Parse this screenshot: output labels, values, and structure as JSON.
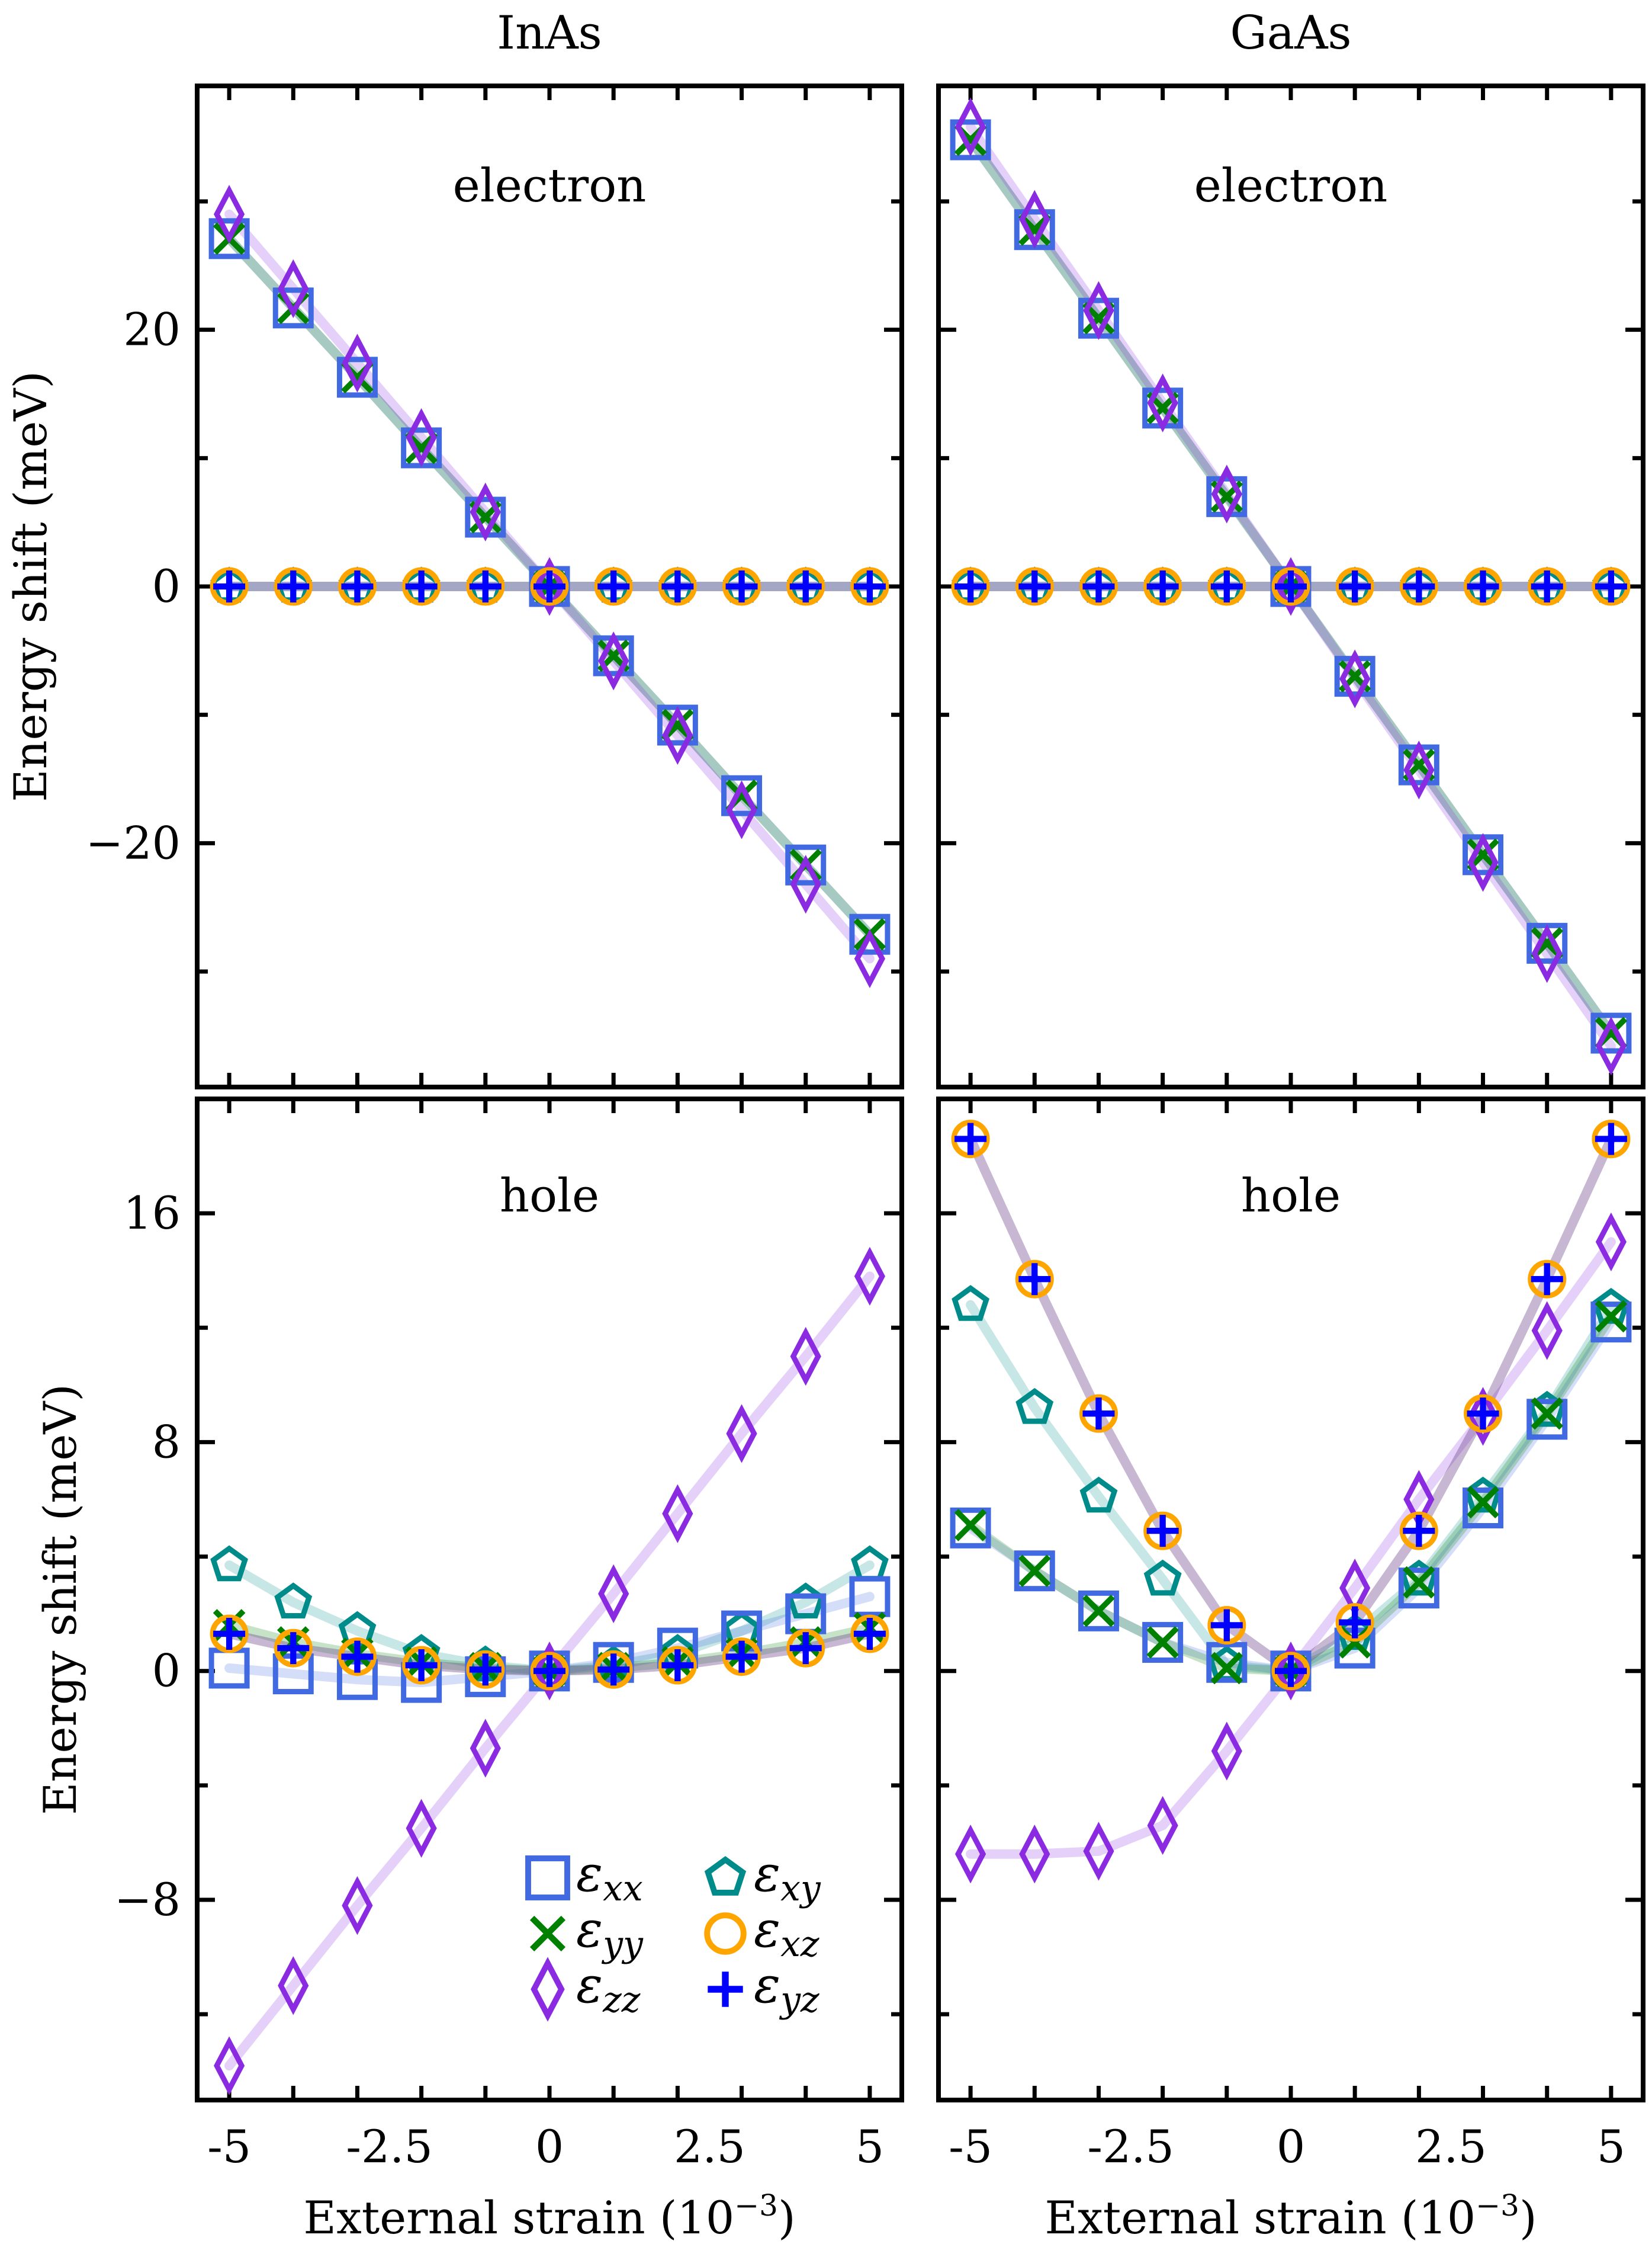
{
  "figure": {
    "columns": [
      "InAs",
      "GaAs"
    ],
    "xlabel": "External strain (10",
    "xlabel_exponent": "−3",
    "xlabel_close": ")",
    "ylabel": "Energy shift (meV)"
  },
  "legend": [
    {
      "key": "exx",
      "base": "ε",
      "sub": "xx",
      "marker": "square",
      "color": "#4169E1"
    },
    {
      "key": "exy",
      "base": "ε",
      "sub": "xy",
      "marker": "pentagon",
      "color": "#008B8B"
    },
    {
      "key": "eyy",
      "base": "ε",
      "sub": "yy",
      "marker": "x",
      "color": "#008000"
    },
    {
      "key": "exz",
      "base": "ε",
      "sub": "xz",
      "marker": "circle",
      "color": "#FFA500"
    },
    {
      "key": "ezz",
      "base": "ε",
      "sub": "zz",
      "marker": "diamond",
      "color": "#8A2BE2"
    },
    {
      "key": "eyz",
      "base": "ε",
      "sub": "yz",
      "marker": "plus",
      "color": "#0000FF"
    }
  ],
  "chart_data": [
    {
      "id": "inas-electron",
      "type": "line",
      "material": "InAs",
      "panel_label": "electron",
      "x": [
        -5,
        -4,
        -3,
        -2,
        -1,
        0,
        1,
        2,
        3,
        4,
        5
      ],
      "xticks": [
        -5,
        -2.5,
        0,
        2.5,
        5
      ],
      "xtick_labels": [
        "-5",
        "-2.5",
        "0",
        "2.5",
        "5"
      ],
      "xlim": [
        -5.5,
        5.5
      ],
      "ylim": [
        -39,
        39
      ],
      "yticks": [
        -20,
        0,
        20
      ],
      "ytick_labels": [
        "−20",
        "0",
        "20"
      ],
      "yminor": [
        -30,
        -10,
        10,
        30
      ],
      "series": [
        {
          "name": "exx",
          "values": [
            27.1,
            21.7,
            16.3,
            10.8,
            5.4,
            0,
            -5.4,
            -10.8,
            -16.3,
            -21.7,
            -27.1
          ]
        },
        {
          "name": "eyy",
          "values": [
            27.1,
            21.7,
            16.3,
            10.8,
            5.4,
            0,
            -5.4,
            -10.8,
            -16.3,
            -21.7,
            -27.1
          ]
        },
        {
          "name": "ezz",
          "values": [
            29.0,
            23.2,
            17.4,
            11.6,
            5.8,
            0,
            -5.8,
            -11.6,
            -17.4,
            -23.2,
            -29.0
          ]
        },
        {
          "name": "exy",
          "values": [
            0,
            0,
            0,
            0,
            0,
            0,
            0,
            0,
            0,
            0,
            0
          ]
        },
        {
          "name": "exz",
          "values": [
            0,
            0,
            0,
            0,
            0,
            0,
            0,
            0,
            0,
            0,
            0
          ]
        },
        {
          "name": "eyz",
          "values": [
            0,
            0,
            0,
            0,
            0,
            0,
            0,
            0,
            0,
            0,
            0
          ]
        }
      ]
    },
    {
      "id": "gaas-electron",
      "type": "line",
      "material": "GaAs",
      "panel_label": "electron",
      "x": [
        -5,
        -4,
        -3,
        -2,
        -1,
        0,
        1,
        2,
        3,
        4,
        5
      ],
      "xticks": [
        -5,
        -2.5,
        0,
        2.5,
        5
      ],
      "xtick_labels": [
        "-5",
        "-2.5",
        "0",
        "2.5",
        "5"
      ],
      "xlim": [
        -5.5,
        5.5
      ],
      "ylim": [
        -39,
        39
      ],
      "yticks": [
        -20,
        0,
        20
      ],
      "ytick_labels": [
        "",
        "",
        ""
      ],
      "yminor": [
        -30,
        -10,
        10,
        30
      ],
      "series": [
        {
          "name": "exx",
          "values": [
            34.8,
            27.8,
            20.9,
            13.9,
            7.0,
            0,
            -7.0,
            -13.9,
            -20.9,
            -27.8,
            -34.8
          ]
        },
        {
          "name": "eyy",
          "values": [
            34.8,
            27.8,
            20.9,
            13.9,
            7.0,
            0,
            -7.0,
            -13.9,
            -20.9,
            -27.8,
            -34.8
          ]
        },
        {
          "name": "ezz",
          "values": [
            35.8,
            28.6,
            21.5,
            14.3,
            7.2,
            0,
            -7.2,
            -14.3,
            -21.5,
            -28.6,
            -35.8
          ]
        },
        {
          "name": "exy",
          "values": [
            0,
            0,
            0,
            0,
            0,
            0,
            0,
            0,
            0,
            0,
            0
          ]
        },
        {
          "name": "exz",
          "values": [
            0,
            0,
            0,
            0,
            0,
            0,
            0,
            0,
            0,
            0,
            0
          ]
        },
        {
          "name": "eyz",
          "values": [
            0,
            0,
            0,
            0,
            0,
            0,
            0,
            0,
            0,
            0,
            0
          ]
        }
      ]
    },
    {
      "id": "inas-hole",
      "type": "line",
      "material": "InAs",
      "panel_label": "hole",
      "x": [
        -5,
        -4,
        -3,
        -2,
        -1,
        0,
        1,
        2,
        3,
        4,
        5
      ],
      "xticks": [
        -5,
        -2.5,
        0,
        2.5,
        5
      ],
      "xtick_labels": [
        "-5",
        "-2.5",
        "0",
        "2.5",
        "5"
      ],
      "xlim": [
        -5.5,
        5.5
      ],
      "ylim": [
        -15,
        20
      ],
      "yticks": [
        -8,
        0,
        8,
        16
      ],
      "ytick_labels": [
        "−8",
        "0",
        "8",
        "16"
      ],
      "yminor": [
        -12,
        -4,
        4,
        12
      ],
      "series": [
        {
          "name": "exx",
          "values": [
            0.1,
            -0.1,
            -0.3,
            -0.4,
            -0.2,
            0,
            0.3,
            0.8,
            1.4,
            2.0,
            2.6
          ]
        },
        {
          "name": "eyy",
          "values": [
            1.6,
            1.0,
            0.6,
            0.3,
            0.1,
            0,
            0.1,
            0.3,
            0.6,
            1.0,
            1.5
          ]
        },
        {
          "name": "ezz",
          "values": [
            -13.8,
            -11.0,
            -8.2,
            -5.5,
            -2.7,
            0,
            2.7,
            5.5,
            8.3,
            11.0,
            13.8
          ]
        },
        {
          "name": "exy",
          "values": [
            3.7,
            2.4,
            1.4,
            0.6,
            0.2,
            0,
            0.2,
            0.6,
            1.4,
            2.4,
            3.7
          ]
        },
        {
          "name": "exz",
          "values": [
            1.3,
            0.8,
            0.5,
            0.2,
            0.05,
            0,
            0.05,
            0.2,
            0.5,
            0.8,
            1.3
          ]
        },
        {
          "name": "eyz",
          "values": [
            1.3,
            0.8,
            0.5,
            0.2,
            0.05,
            0,
            0.05,
            0.2,
            0.5,
            0.8,
            1.3
          ]
        }
      ]
    },
    {
      "id": "gaas-hole",
      "type": "line",
      "material": "GaAs",
      "panel_label": "hole",
      "x": [
        -5,
        -4,
        -3,
        -2,
        -1,
        0,
        1,
        2,
        3,
        4,
        5
      ],
      "xticks": [
        -5,
        -2.5,
        0,
        2.5,
        5
      ],
      "xtick_labels": [
        "-5",
        "-2.5",
        "0",
        "2.5",
        "5"
      ],
      "xlim": [
        -5.5,
        5.5
      ],
      "ylim": [
        -15,
        20
      ],
      "yticks": [
        -8,
        0,
        8,
        16
      ],
      "ytick_labels": [
        "",
        "",
        "",
        ""
      ],
      "yminor": [
        -12,
        -4,
        4,
        12
      ],
      "series": [
        {
          "name": "exx",
          "values": [
            5.0,
            3.5,
            2.1,
            1.0,
            0.3,
            0,
            0.8,
            2.9,
            5.7,
            8.8,
            12.2
          ]
        },
        {
          "name": "eyy",
          "values": [
            5.1,
            3.5,
            2.1,
            1.0,
            0.1,
            0,
            1.0,
            3.1,
            5.9,
            9.0,
            12.4
          ]
        },
        {
          "name": "ezz",
          "values": [
            -6.4,
            -6.4,
            -6.3,
            -5.4,
            -2.8,
            0,
            2.9,
            6.0,
            8.9,
            11.9,
            15.0
          ]
        },
        {
          "name": "exy",
          "values": [
            12.8,
            9.2,
            6.1,
            3.2,
            0.2,
            0,
            1.3,
            3.2,
            6.1,
            9.1,
            12.7
          ]
        },
        {
          "name": "exz",
          "values": [
            18.6,
            13.7,
            9.0,
            4.9,
            1.6,
            0,
            1.7,
            4.9,
            9.0,
            13.7,
            18.6
          ]
        },
        {
          "name": "eyz",
          "values": [
            18.6,
            13.7,
            9.0,
            4.9,
            1.6,
            0,
            1.7,
            4.9,
            9.0,
            13.7,
            18.6
          ]
        }
      ]
    }
  ]
}
